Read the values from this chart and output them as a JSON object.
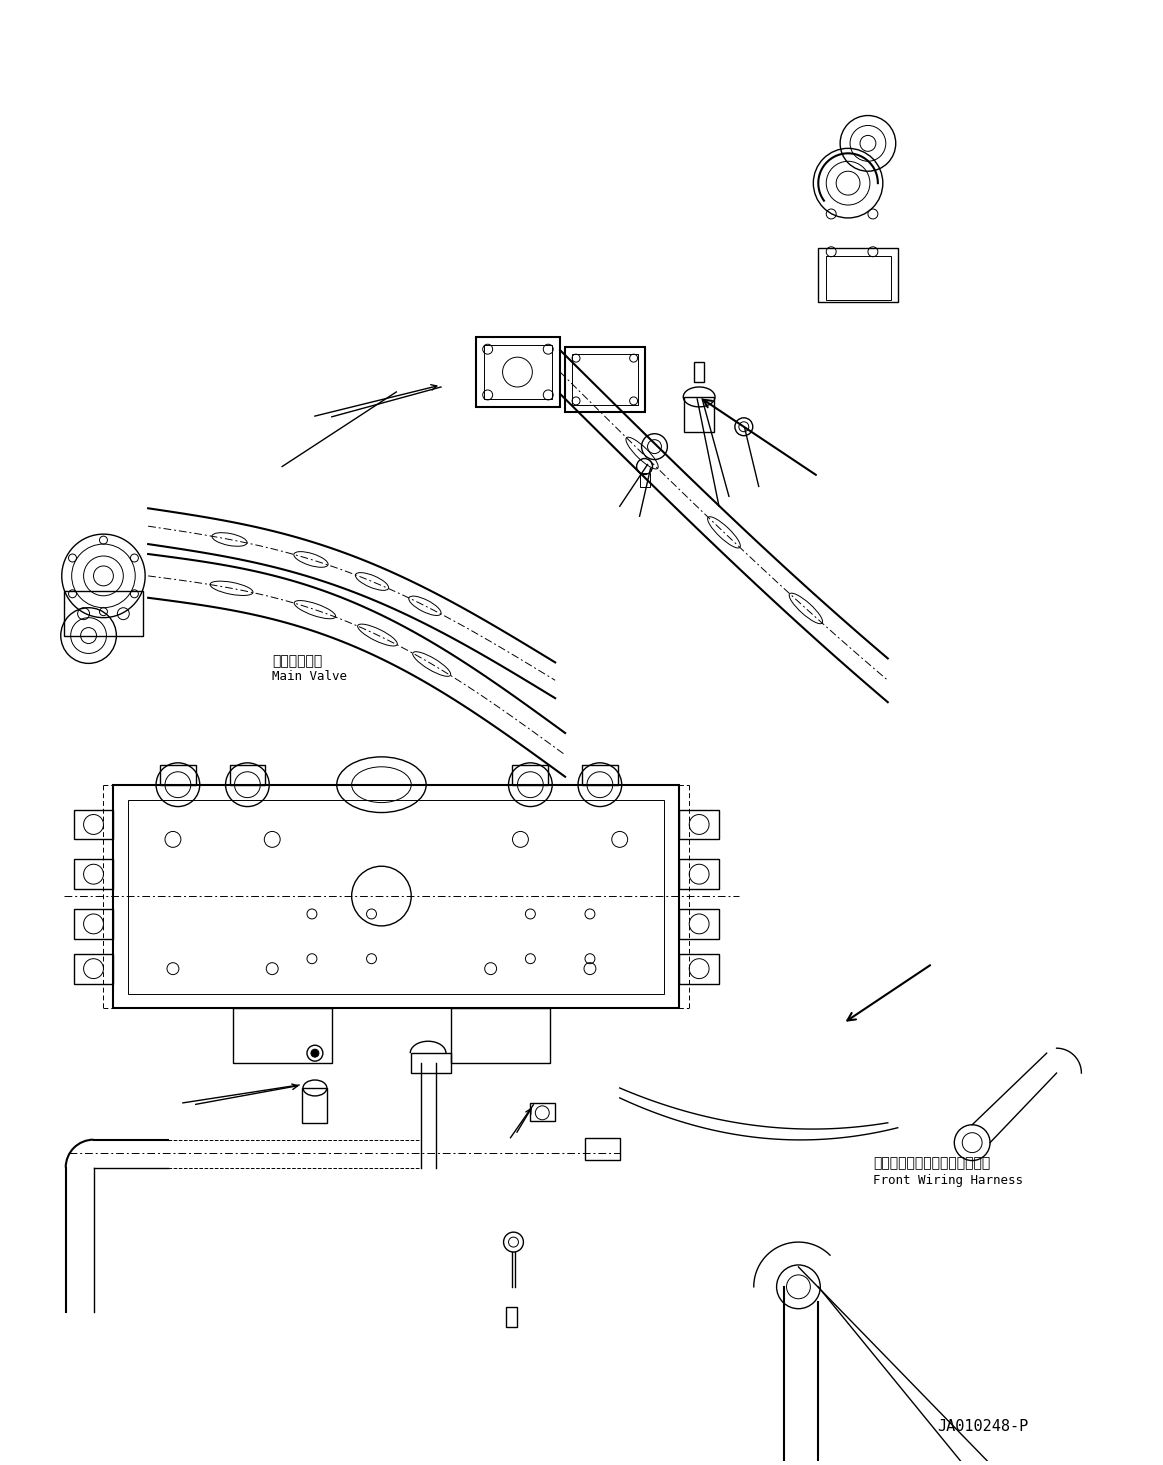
{
  "background_color": "#ffffff",
  "line_color": "#000000",
  "figure_width": 11.63,
  "figure_height": 14.65,
  "dpi": 100,
  "label_japanese_1": "フロントワイヤリングハーネス",
  "label_english_1": "Front Wiring Harness",
  "label_japanese_2": "メインバルブ",
  "label_english_2": "Main Valve",
  "part_number": "JA010248-P",
  "font_size_japanese": 10,
  "font_size_english": 9,
  "font_size_part": 9
}
